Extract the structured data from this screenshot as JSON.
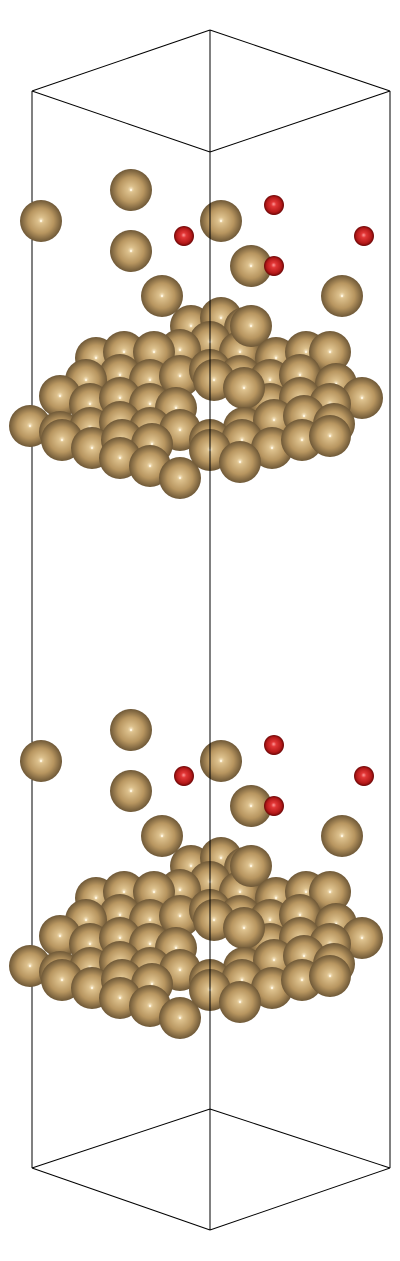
{
  "scene": {
    "description_label": "",
    "colors": {
      "background": "#ffffff",
      "cell_edge": "#000000",
      "metal_atom": "#c9a66b",
      "metal_atom_light": "#f3e2bd",
      "metal_atom_dark": "#6b5634",
      "oxygen_atom": "#d22a2a",
      "oxygen_atom_light": "#ff8a8a",
      "oxygen_atom_dark": "#7a0a0a"
    },
    "atom_types": [
      "metal",
      "oxygen"
    ],
    "periodic_images": 2
  }
}
